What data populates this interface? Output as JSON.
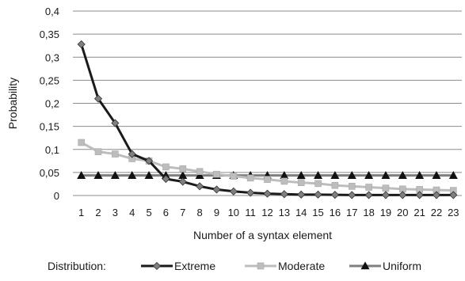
{
  "chart_data": {
    "type": "line",
    "title": "",
    "xlabel": "Number of a syntax element",
    "ylabel": "Probability",
    "x": [
      1,
      2,
      3,
      4,
      5,
      6,
      7,
      8,
      9,
      10,
      11,
      12,
      13,
      14,
      15,
      16,
      17,
      18,
      19,
      20,
      21,
      22,
      23
    ],
    "ylim": [
      0,
      0.4
    ],
    "yticks": [
      "0",
      "0,05",
      "0,1",
      "0,15",
      "0,2",
      "0,25",
      "0,3",
      "0,35",
      "0,4"
    ],
    "grid": "horizontal",
    "legend_title": "Distribution:",
    "legend_position": "bottom",
    "series": [
      {
        "name": "Extreme",
        "color": "#1a1a1a",
        "marker": "diamond",
        "values": [
          0.328,
          0.21,
          0.157,
          0.09,
          0.075,
          0.036,
          0.03,
          0.02,
          0.013,
          0.009,
          0.006,
          0.004,
          0.003,
          0.002,
          0.002,
          0.0015,
          0.001,
          0.001,
          0.001,
          0.001,
          0.001,
          0.001,
          0.001
        ]
      },
      {
        "name": "Moderate",
        "color": "#bdbdbd",
        "marker": "square",
        "values": [
          0.115,
          0.095,
          0.09,
          0.08,
          0.075,
          0.062,
          0.058,
          0.052,
          0.046,
          0.042,
          0.038,
          0.035,
          0.031,
          0.028,
          0.026,
          0.022,
          0.02,
          0.018,
          0.016,
          0.014,
          0.013,
          0.012,
          0.011
        ]
      },
      {
        "name": "Uniform",
        "color": "#7f7f7f",
        "marker": "triangle",
        "values": [
          0.0435,
          0.0435,
          0.0435,
          0.0435,
          0.0435,
          0.0435,
          0.0435,
          0.0435,
          0.0435,
          0.0435,
          0.0435,
          0.0435,
          0.0435,
          0.0435,
          0.0435,
          0.0435,
          0.0435,
          0.0435,
          0.0435,
          0.0435,
          0.0435,
          0.0435,
          0.0435
        ]
      }
    ]
  }
}
